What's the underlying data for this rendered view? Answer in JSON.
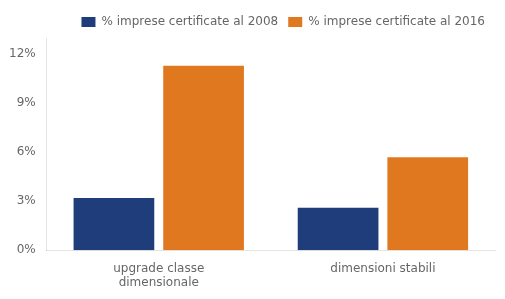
{
  "chart_data": {
    "type": "bar",
    "categories": [
      "upgrade classe\ndimensionale",
      "dimensioni stabili"
    ],
    "series": [
      {
        "name": "% imprese certificate al 2008",
        "color": "#1f3d7a",
        "values": [
          0.032,
          0.026
        ]
      },
      {
        "name": "% imprese certificate al 2016",
        "color": "#e07820",
        "values": [
          0.113,
          0.057
        ]
      }
    ],
    "ylim": [
      0,
      0.13
    ],
    "yticks": [
      {
        "value": 0.0,
        "label": "0%"
      },
      {
        "value": 0.03,
        "label": "3%"
      },
      {
        "value": 0.06,
        "label": "6%"
      },
      {
        "value": 0.09,
        "label": "9%"
      },
      {
        "value": 0.12,
        "label": "12%"
      }
    ],
    "grid": false,
    "legend": "upper right"
  }
}
